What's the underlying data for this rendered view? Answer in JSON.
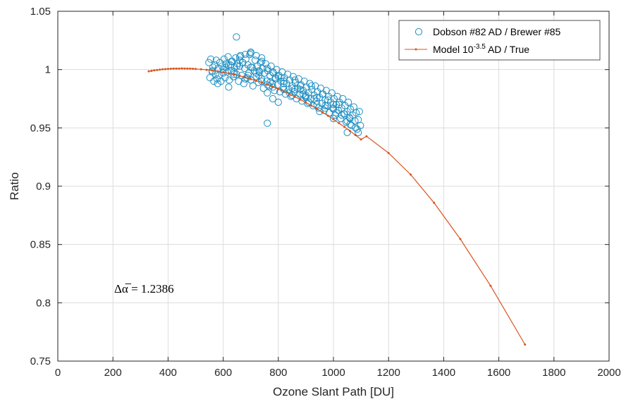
{
  "chart_data": {
    "type": "scatter",
    "xlabel": "Ozone Slant Path [DU]",
    "ylabel": "Ratio",
    "xlim": [
      0,
      2000
    ],
    "ylim": [
      0.75,
      1.05
    ],
    "xticks": [
      "0",
      "200",
      "400",
      "600",
      "800",
      "1000",
      "1200",
      "1400",
      "1600",
      "1800",
      "2000"
    ],
    "yticks": [
      "0.75",
      "0.8",
      "0.85",
      "0.9",
      "0.95",
      "1",
      "1.05"
    ],
    "grid": true,
    "legend_position": "top-right",
    "colors": {
      "scatter": "#1f8fc2",
      "model": "#d9531e"
    },
    "annotation": "Δα̅ = 1.2386",
    "series": [
      {
        "name": "Dobson #82 AD / Brewer #85",
        "kind": "scatter",
        "marker": "circle-open",
        "x": [
          548,
          552,
          555,
          560,
          563,
          566,
          570,
          572,
          575,
          578,
          582,
          585,
          588,
          592,
          596,
          600,
          603,
          607,
          611,
          615,
          618,
          622,
          626,
          630,
          633,
          637,
          641,
          645,
          648,
          652,
          656,
          660,
          663,
          667,
          671,
          675,
          678,
          682,
          686,
          690,
          693,
          697,
          701,
          705,
          708,
          712,
          716,
          720,
          724,
          728,
          731,
          735,
          739,
          743,
          746,
          750,
          754,
          758,
          762,
          766,
          770,
          774,
          778,
          782,
          786,
          790,
          794,
          798,
          802,
          806,
          810,
          814,
          818,
          822,
          826,
          830,
          834,
          838,
          842,
          846,
          850,
          854,
          858,
          862,
          866,
          870,
          874,
          878,
          882,
          886,
          890,
          894,
          898,
          902,
          906,
          910,
          914,
          918,
          922,
          926,
          930,
          934,
          938,
          942,
          946,
          950,
          954,
          958,
          962,
          966,
          970,
          974,
          978,
          982,
          986,
          990,
          994,
          998,
          1002,
          1006,
          1010,
          1014,
          1018,
          1022,
          1026,
          1030,
          1034,
          1038,
          1042,
          1046,
          1050,
          1054,
          1058,
          1062,
          1066,
          1070,
          1074,
          1078,
          1082,
          1086,
          1090,
          1094,
          1098,
          600,
          620,
          640,
          660,
          680,
          700,
          720,
          740,
          760,
          780,
          800,
          820,
          840,
          860,
          880,
          900,
          920,
          940,
          960,
          980,
          1000,
          1020,
          1040,
          1060,
          1080,
          650,
          690,
          730,
          770,
          810,
          850,
          890,
          930,
          970,
          1010,
          1050,
          610,
          640,
          670,
          700,
          730,
          760,
          790,
          820,
          850,
          880,
          910,
          940,
          970,
          1000,
          1030,
          1060,
          648,
          760,
          700,
          720,
          740,
          680,
          760,
          780,
          800,
          620,
          580,
          560,
          630,
          660,
          700,
          740,
          780,
          820,
          860,
          900,
          950,
          1000,
          1050,
          1090
        ],
        "y": [
          1.006,
          0.993,
          1.009,
          0.998,
          1.002,
          0.99,
          1.004,
          0.996,
          1.008,
          0.992,
          1.001,
          0.995,
          1.006,
          0.99,
          1.003,
          0.997,
          1.009,
          0.993,
          1.005,
          0.998,
          1.011,
          0.991,
          1.004,
          0.999,
          1.007,
          0.994,
          1.002,
          1.01,
          0.996,
          1.005,
          0.99,
          1.003,
          1.012,
          0.995,
          1.006,
          0.988,
          1.001,
          1.009,
          0.993,
          1.004,
          0.997,
          1.013,
          0.991,
          1.002,
          0.986,
          0.999,
          1.008,
          0.994,
          1.003,
          0.989,
          0.998,
          1.006,
          0.992,
          1.001,
          0.984,
          0.997,
          1.005,
          0.99,
          0.999,
          0.986,
          0.995,
          1.003,
          0.988,
          0.997,
          0.982,
          0.993,
          1.0,
          0.987,
          0.995,
          0.981,
          0.99,
          0.998,
          0.985,
          0.993,
          0.979,
          0.988,
          0.996,
          0.983,
          0.991,
          0.977,
          0.986,
          0.994,
          0.981,
          0.989,
          0.975,
          0.984,
          0.992,
          0.979,
          0.987,
          0.973,
          0.982,
          0.99,
          0.977,
          0.985,
          0.971,
          0.98,
          0.988,
          0.975,
          0.983,
          0.969,
          0.978,
          0.986,
          0.973,
          0.981,
          0.967,
          0.976,
          0.984,
          0.971,
          0.979,
          0.965,
          0.974,
          0.982,
          0.969,
          0.977,
          0.963,
          0.972,
          0.98,
          0.967,
          0.975,
          0.961,
          0.97,
          0.977,
          0.965,
          0.972,
          0.958,
          0.967,
          0.975,
          0.962,
          0.969,
          0.955,
          0.964,
          0.972,
          0.959,
          0.966,
          0.952,
          0.961,
          0.968,
          0.956,
          0.963,
          0.949,
          0.957,
          0.964,
          0.952,
          1.0,
          1.004,
          0.996,
          1.008,
          0.992,
          1.002,
          0.997,
          0.99,
          1.001,
          0.985,
          0.994,
          0.988,
          0.98,
          0.991,
          0.983,
          0.976,
          0.986,
          0.97,
          0.979,
          0.974,
          0.966,
          0.97,
          0.962,
          0.958,
          0.95,
          1.003,
          0.995,
          0.999,
          0.989,
          0.993,
          0.984,
          0.979,
          0.975,
          0.969,
          0.963,
          0.956,
          1.002,
          0.998,
          1.006,
          0.991,
          0.995,
          0.987,
          0.992,
          0.983,
          0.978,
          0.986,
          0.972,
          0.976,
          0.967,
          0.97,
          0.961,
          0.953,
          1.028,
          0.954,
          1.015,
          1.012,
          1.01,
          1.013,
          0.98,
          0.975,
          0.972,
          0.985,
          0.988,
          0.999,
          1.007,
          1.011,
          1.014,
          1.007,
          0.998,
          0.99,
          0.983,
          0.978,
          0.964,
          0.958,
          0.946,
          0.946
        ]
      },
      {
        "name": "Model 10^-3.5 AD / True",
        "kind": "line",
        "marker": "dot",
        "x": [
          330,
          340,
          350,
          360,
          370,
          380,
          390,
          400,
          410,
          420,
          430,
          440,
          450,
          460,
          470,
          480,
          490,
          500,
          520,
          540,
          560,
          580,
          600,
          620,
          640,
          660,
          680,
          700,
          720,
          740,
          760,
          780,
          800,
          820,
          840,
          860,
          880,
          900,
          920,
          940,
          960,
          980,
          1000,
          1020,
          1040,
          1060,
          1080,
          1100,
          1120,
          1200,
          1280,
          1365,
          1460,
          1570,
          1695
        ],
        "y": [
          0.9985,
          0.9989,
          0.9993,
          0.9996,
          0.9999,
          1.0002,
          1.0004,
          1.0006,
          1.0007,
          1.0008,
          1.0009,
          1.0009,
          1.001,
          1.0009,
          1.0009,
          1.0008,
          1.0007,
          1.0005,
          1.0002,
          0.9998,
          0.9992,
          0.9985,
          0.9977,
          0.9968,
          0.9957,
          0.9946,
          0.9933,
          0.9919,
          0.9904,
          0.9888,
          0.9871,
          0.9852,
          0.9833,
          0.9812,
          0.979,
          0.9767,
          0.9743,
          0.9718,
          0.9691,
          0.9663,
          0.9635,
          0.9604,
          0.9573,
          0.9541,
          0.9508,
          0.9473,
          0.9438,
          0.9401,
          0.9428,
          0.9284,
          0.91,
          0.8858,
          0.8547,
          0.8146,
          0.7642
        ]
      }
    ]
  }
}
